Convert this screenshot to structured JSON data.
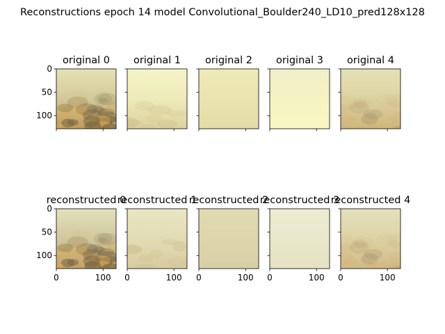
{
  "figure": {
    "title": "Reconstructions epoch 14 model Convolutional_Boulder240_LD10_pred128x128"
  },
  "chart_data": {
    "type": "image-grid",
    "title": "Reconstructions epoch 14 model Convolutional_Boulder240_LD10_pred128x128",
    "image_size": [
      128,
      128
    ],
    "xlim": [
      0,
      128
    ],
    "ylim": [
      128,
      0
    ],
    "xticks": [
      0,
      100
    ],
    "yticks": [
      0,
      50,
      100
    ],
    "rows": [
      {
        "row": "original",
        "panels": [
          {
            "title": "original 0",
            "top": "#e6e2b4",
            "mid": "#d2c999",
            "bottom": "#c29a56",
            "texture": "rocks-strong"
          },
          {
            "title": "original 1",
            "top": "#f6f4c8",
            "mid": "#eeeab9",
            "bottom": "#dcd39e",
            "texture": "hazy"
          },
          {
            "title": "original 2",
            "top": "#eeeab8",
            "mid": "#e9e4b0",
            "bottom": "#e2dca7",
            "texture": "flat"
          },
          {
            "title": "original 3",
            "top": "#f1efc9",
            "mid": "#f5f3c3",
            "bottom": "#f8f6c2",
            "texture": "flat"
          },
          {
            "title": "original 4",
            "top": "#e5e1b6",
            "mid": "#dcd3a2",
            "bottom": "#cfb57c",
            "texture": "rocks-soft"
          }
        ]
      },
      {
        "row": "reconstructed",
        "panels": [
          {
            "title": "reconstructed 0",
            "top": "#e3e0b9",
            "mid": "#d0c89f",
            "bottom": "#c4a060",
            "texture": "rocks-strong"
          },
          {
            "title": "reconstructed 1",
            "top": "#e9e6c2",
            "mid": "#e2dcb4",
            "bottom": "#d8cc9e",
            "texture": "hazy"
          },
          {
            "title": "reconstructed 2",
            "top": "#e1dbb2",
            "mid": "#ddd6ac",
            "bottom": "#d8d0a4",
            "texture": "flat"
          },
          {
            "title": "reconstructed 3",
            "top": "#ecebd2",
            "mid": "#eae8cb",
            "bottom": "#e5e1c2",
            "texture": "flat"
          },
          {
            "title": "reconstructed 4",
            "top": "#e5e1bb",
            "mid": "#ddd3a6",
            "bottom": "#d0ba85",
            "texture": "rocks-soft"
          }
        ]
      }
    ]
  }
}
